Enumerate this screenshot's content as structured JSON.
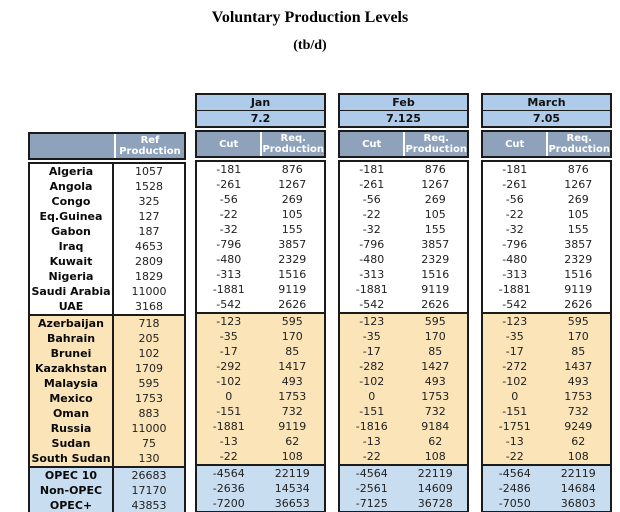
{
  "title": "Voluntary Production Levels",
  "subtitle": "(tb/d)",
  "colors": {
    "slate_header": "#8EA2BC",
    "month_header_blue": "#AECBE9",
    "totals_blue": "#C9DDF0",
    "non_opec_tan": "#FBE4B8",
    "border": "#1b1b1b"
  },
  "headers": {
    "ref": "Ref\nProduction",
    "cut": "Cut",
    "req": "Req.\nProduction"
  },
  "months": [
    {
      "key": "jan",
      "name": "Jan",
      "level": "7.2"
    },
    {
      "key": "feb",
      "name": "Feb",
      "level": "7.125"
    },
    {
      "key": "mar",
      "name": "March",
      "level": "7.05"
    }
  ],
  "sections": {
    "opec": {
      "rows": [
        {
          "name": "Algeria",
          "ref": "1057",
          "jan": [
            "-181",
            "876"
          ],
          "feb": [
            "-181",
            "876"
          ],
          "mar": [
            "-181",
            "876"
          ]
        },
        {
          "name": "Angola",
          "ref": "1528",
          "jan": [
            "-261",
            "1267"
          ],
          "feb": [
            "-261",
            "1267"
          ],
          "mar": [
            "-261",
            "1267"
          ]
        },
        {
          "name": "Congo",
          "ref": "325",
          "jan": [
            "-56",
            "269"
          ],
          "feb": [
            "-56",
            "269"
          ],
          "mar": [
            "-56",
            "269"
          ]
        },
        {
          "name": "Eq.Guinea",
          "ref": "127",
          "jan": [
            "-22",
            "105"
          ],
          "feb": [
            "-22",
            "105"
          ],
          "mar": [
            "-22",
            "105"
          ]
        },
        {
          "name": "Gabon",
          "ref": "187",
          "jan": [
            "-32",
            "155"
          ],
          "feb": [
            "-32",
            "155"
          ],
          "mar": [
            "-32",
            "155"
          ]
        },
        {
          "name": "Iraq",
          "ref": "4653",
          "jan": [
            "-796",
            "3857"
          ],
          "feb": [
            "-796",
            "3857"
          ],
          "mar": [
            "-796",
            "3857"
          ]
        },
        {
          "name": "Kuwait",
          "ref": "2809",
          "jan": [
            "-480",
            "2329"
          ],
          "feb": [
            "-480",
            "2329"
          ],
          "mar": [
            "-480",
            "2329"
          ]
        },
        {
          "name": "Nigeria",
          "ref": "1829",
          "jan": [
            "-313",
            "1516"
          ],
          "feb": [
            "-313",
            "1516"
          ],
          "mar": [
            "-313",
            "1516"
          ]
        },
        {
          "name": "Saudi Arabia",
          "ref": "11000",
          "jan": [
            "-1881",
            "9119"
          ],
          "feb": [
            "-1881",
            "9119"
          ],
          "mar": [
            "-1881",
            "9119"
          ]
        },
        {
          "name": "UAE",
          "ref": "3168",
          "jan": [
            "-542",
            "2626"
          ],
          "feb": [
            "-542",
            "2626"
          ],
          "mar": [
            "-542",
            "2626"
          ]
        }
      ]
    },
    "non_opec": {
      "rows": [
        {
          "name": "Azerbaijan",
          "ref": "718",
          "jan": [
            "-123",
            "595"
          ],
          "feb": [
            "-123",
            "595"
          ],
          "mar": [
            "-123",
            "595"
          ]
        },
        {
          "name": "Bahrain",
          "ref": "205",
          "jan": [
            "-35",
            "170"
          ],
          "feb": [
            "-35",
            "170"
          ],
          "mar": [
            "-35",
            "170"
          ]
        },
        {
          "name": "Brunei",
          "ref": "102",
          "jan": [
            "-17",
            "85"
          ],
          "feb": [
            "-17",
            "85"
          ],
          "mar": [
            "-17",
            "85"
          ]
        },
        {
          "name": "Kazakhstan",
          "ref": "1709",
          "jan": [
            "-292",
            "1417"
          ],
          "feb": [
            "-282",
            "1427"
          ],
          "mar": [
            "-272",
            "1437"
          ]
        },
        {
          "name": "Malaysia",
          "ref": "595",
          "jan": [
            "-102",
            "493"
          ],
          "feb": [
            "-102",
            "493"
          ],
          "mar": [
            "-102",
            "493"
          ]
        },
        {
          "name": "Mexico",
          "ref": "1753",
          "jan": [
            "0",
            "1753"
          ],
          "feb": [
            "0",
            "1753"
          ],
          "mar": [
            "0",
            "1753"
          ]
        },
        {
          "name": "Oman",
          "ref": "883",
          "jan": [
            "-151",
            "732"
          ],
          "feb": [
            "-151",
            "732"
          ],
          "mar": [
            "-151",
            "732"
          ]
        },
        {
          "name": "Russia",
          "ref": "11000",
          "jan": [
            "-1881",
            "9119"
          ],
          "feb": [
            "-1816",
            "9184"
          ],
          "mar": [
            "-1751",
            "9249"
          ]
        },
        {
          "name": "Sudan",
          "ref": "75",
          "jan": [
            "-13",
            "62"
          ],
          "feb": [
            "-13",
            "62"
          ],
          "mar": [
            "-13",
            "62"
          ]
        },
        {
          "name": "South Sudan",
          "ref": "130",
          "jan": [
            "-22",
            "108"
          ],
          "feb": [
            "-22",
            "108"
          ],
          "mar": [
            "-22",
            "108"
          ]
        }
      ]
    },
    "totals": {
      "rows": [
        {
          "name": "OPEC 10",
          "ref": "26683",
          "jan": [
            "-4564",
            "22119"
          ],
          "feb": [
            "-4564",
            "22119"
          ],
          "mar": [
            "-4564",
            "22119"
          ]
        },
        {
          "name": "Non-OPEC",
          "ref": "17170",
          "jan": [
            "-2636",
            "14534"
          ],
          "feb": [
            "-2561",
            "14609"
          ],
          "mar": [
            "-2486",
            "14684"
          ]
        },
        {
          "name": "OPEC+",
          "ref": "43853",
          "jan": [
            "-7200",
            "36653"
          ],
          "feb": [
            "-7125",
            "36728"
          ],
          "mar": [
            "-7050",
            "36803"
          ]
        }
      ]
    }
  }
}
